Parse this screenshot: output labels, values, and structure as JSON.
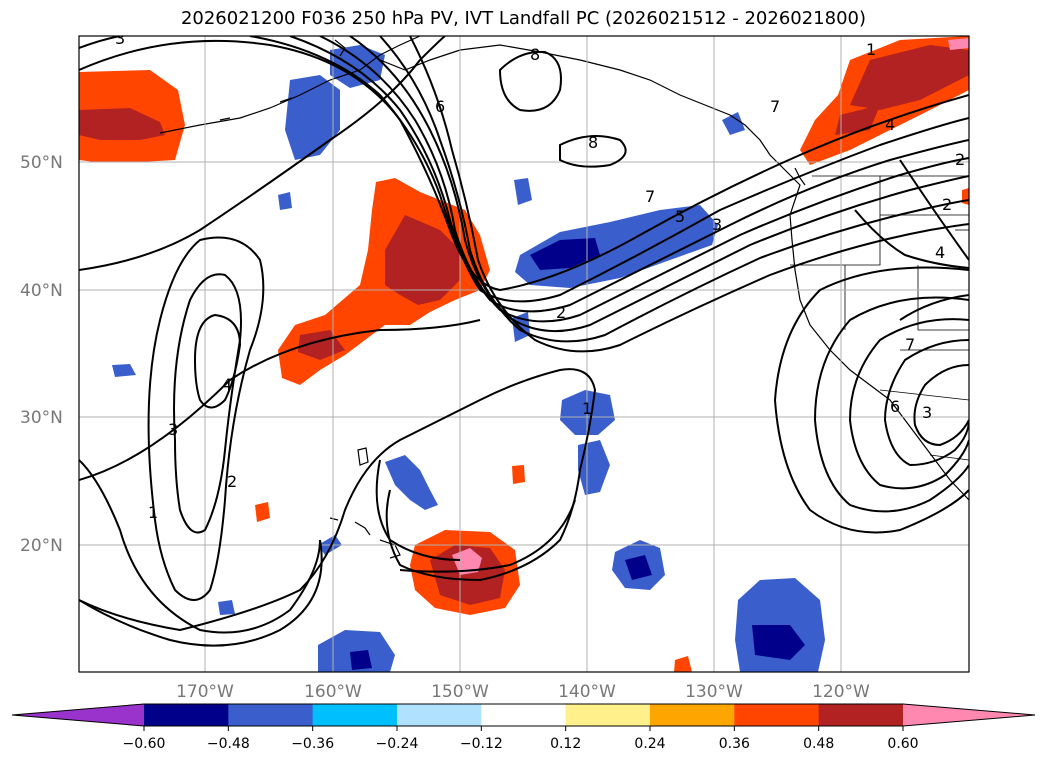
{
  "title": "2026021200 F036 250 hPa PV, IVT Landfall PC (2026021512 - 2026021800)",
  "lat_labels": [
    "50°N",
    "40°N",
    "30°N",
    "20°N"
  ],
  "lon_labels": [
    "170°W",
    "160°W",
    "150°W",
    "140°W",
    "130°W",
    "120°W"
  ],
  "colorbar": {
    "ticks": [
      "−0.60",
      "−0.48",
      "−0.36",
      "−0.24",
      "−0.12",
      "0.12",
      "0.24",
      "0.36",
      "0.48",
      "0.60"
    ],
    "colors": [
      "#9933cc",
      "#00008b",
      "#3a5fcd",
      "#00bfff",
      "#b0e2ff",
      "#ffffff",
      "#fff08c",
      "#ffa500",
      "#ff4500",
      "#b22222",
      "#ff88b0"
    ]
  },
  "contour_labels": [
    "1",
    "2",
    "3",
    "4",
    "5",
    "6",
    "7",
    "8"
  ],
  "colors": {
    "coast": "#000000",
    "grid": "#b0b0b0"
  }
}
